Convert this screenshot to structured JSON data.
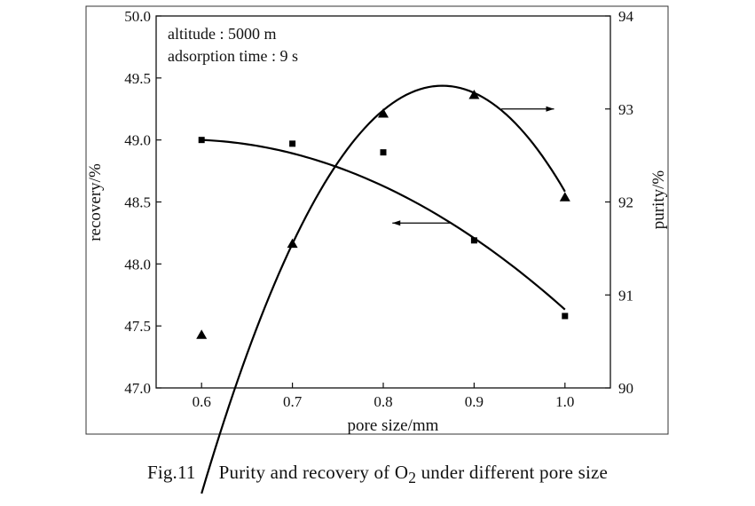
{
  "chart_data": {
    "type": "line",
    "x": [
      0.6,
      0.7,
      0.8,
      0.9,
      1.0
    ],
    "xlabel": "pore size/mm",
    "xlim": [
      0.55,
      1.05
    ],
    "x_ticks": [
      "0.6",
      "0.7",
      "0.8",
      "0.9",
      "1.0"
    ],
    "ylabel": "recovery/%",
    "ylim": [
      47.0,
      50.0
    ],
    "y_ticks": [
      "47.0",
      "47.5",
      "48.0",
      "48.5",
      "49.0",
      "49.5",
      "50.0"
    ],
    "y2label": "purity/%",
    "y2lim": [
      90,
      94
    ],
    "y2_ticks": [
      "90",
      "91",
      "92",
      "93",
      "94"
    ],
    "grid": false,
    "annotations": [
      "altitude : 5000 m",
      "adsorption time : 9 s"
    ],
    "series": [
      {
        "name": "recovery",
        "axis": "left",
        "marker": "square",
        "values": [
          49.0,
          48.97,
          48.9,
          48.19,
          47.58
        ],
        "arrow": "left"
      },
      {
        "name": "purity",
        "axis": "right",
        "marker": "triangle",
        "values": [
          90.57,
          91.55,
          92.95,
          93.15,
          92.05
        ],
        "arrow": "right"
      }
    ]
  },
  "caption": {
    "number": "Fig.11",
    "text_before": "Purity and recovery of O",
    "subscript": "2",
    "text_after": " under different pore size"
  }
}
